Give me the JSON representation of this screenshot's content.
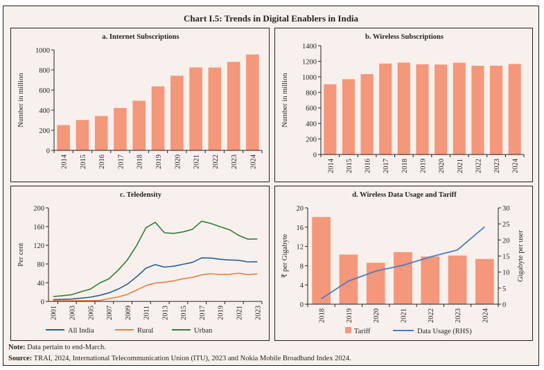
{
  "title": "Chart I.5: Trends in Digital Enablers in India",
  "colors": {
    "bar": "#F4977A",
    "all_india": "#1F6391",
    "rural": "#F07B3F",
    "urban": "#2E7D3E",
    "data_usage": "#4A7CC4",
    "axis": "#231F20"
  },
  "notes": {
    "note_label": "Note:",
    "note_text": " Data pertain to end-March.",
    "source_label": "Source:",
    "source_text": " TRAI, 2024, International Telecommunication Union (ITU), 2023 and Nokia Mobile Broadband Index 2024."
  },
  "chart_data": [
    {
      "id": "a",
      "type": "bar",
      "title": "a. Internet Subscriptions",
      "xlabel": "",
      "ylabel": "Number in million",
      "categories": [
        "2014",
        "2015",
        "2016",
        "2017",
        "2018",
        "2019",
        "2020",
        "2021",
        "2022",
        "2023",
        "2024"
      ],
      "values": [
        251,
        302,
        342,
        422,
        494,
        637,
        743,
        825,
        824,
        881,
        954
      ],
      "ylim": [
        0,
        1000
      ],
      "yticks": [
        0,
        200,
        400,
        600,
        800,
        1000
      ],
      "grid": false
    },
    {
      "id": "b",
      "type": "bar",
      "title": "b. Wireless Subscriptions",
      "xlabel": "",
      "ylabel": "Number in million",
      "categories": [
        "2014",
        "2015",
        "2016",
        "2017",
        "2018",
        "2019",
        "2020",
        "2021",
        "2022",
        "2023",
        "2024"
      ],
      "values": [
        904,
        969,
        1034,
        1170,
        1183,
        1162,
        1158,
        1181,
        1142,
        1143,
        1165
      ],
      "ylim": [
        0,
        1400
      ],
      "yticks": [
        0,
        200,
        400,
        600,
        800,
        1000,
        1200,
        1400
      ],
      "grid": false
    },
    {
      "id": "c",
      "type": "line",
      "title": "c. Teledensity",
      "xlabel": "",
      "ylabel": "Per cent",
      "x": [
        "2001",
        "2002",
        "2003",
        "2004",
        "2005",
        "2006",
        "2007",
        "2008",
        "2009",
        "2010",
        "2011",
        "2012",
        "2013",
        "2014",
        "2015",
        "2016",
        "2017",
        "2018",
        "2019",
        "2020",
        "2021",
        "2022",
        "2023"
      ],
      "xtick_labels": [
        "2001",
        "2003",
        "2005",
        "2007",
        "2009",
        "2011",
        "2013",
        "2015",
        "2017",
        "2019",
        "2021",
        "2023"
      ],
      "series": [
        {
          "name": "All India",
          "color_key": "all_india",
          "values": [
            3.6,
            4.3,
            5.1,
            7.0,
            9.1,
            12.9,
            18.2,
            26.2,
            36.9,
            52.7,
            70.9,
            78.7,
            73.3,
            75.2,
            79.4,
            83.4,
            93.0,
            92.8,
            90.1,
            88.6,
            87.9,
            84.5,
            84.8
          ]
        },
        {
          "name": "Rural",
          "color_key": "rural",
          "values": [
            0.9,
            1.2,
            1.5,
            1.6,
            1.7,
            1.9,
            5.9,
            9.5,
            15.1,
            24.3,
            33.8,
            39.3,
            41.0,
            44.0,
            48.4,
            51.4,
            56.9,
            59.2,
            57.4,
            57.9,
            60.3,
            57.2,
            59.0
          ]
        },
        {
          "name": "Urban",
          "color_key": "urban",
          "values": [
            10.4,
            12.2,
            14.3,
            20.7,
            26.2,
            39.2,
            48.1,
            66.4,
            88.8,
            119.5,
            157.3,
            169.2,
            146.6,
            145.5,
            148.6,
            154.0,
            171.5,
            166.6,
            159.7,
            153.4,
            141.0,
            133.0,
            133.7
          ]
        }
      ],
      "ylim": [
        0,
        200
      ],
      "yticks": [
        0,
        40,
        80,
        120,
        160,
        200
      ],
      "legend": "bottom",
      "grid": false
    },
    {
      "id": "d",
      "type": "bar",
      "title": "d. Wireless Data Usage and Tariff",
      "xlabel": "",
      "ylabel": "₹ per Gigabyte",
      "ylabel_right": "Gigabyte per user",
      "categories": [
        "2018",
        "2019",
        "2020",
        "2021",
        "2022",
        "2023",
        "2024"
      ],
      "series": [
        {
          "name": "Tariff",
          "kind": "bar",
          "axis": "left",
          "color_key": "bar",
          "values": [
            18.1,
            10.3,
            8.6,
            10.8,
            9.9,
            10.1,
            9.4
          ]
        },
        {
          "name": "Data Usage (RHS)",
          "kind": "line",
          "axis": "right",
          "color_key": "data_usage",
          "values": [
            1.7,
            7.2,
            10.3,
            12.1,
            14.7,
            16.9,
            24.1
          ]
        }
      ],
      "ylim": [
        0,
        20
      ],
      "yticks": [
        0,
        4,
        8,
        12,
        16,
        20
      ],
      "ylim_right": [
        0,
        30
      ],
      "yticks_right": [
        0,
        5,
        10,
        15,
        20,
        25,
        30
      ],
      "legend": "bottom",
      "grid": false
    }
  ]
}
